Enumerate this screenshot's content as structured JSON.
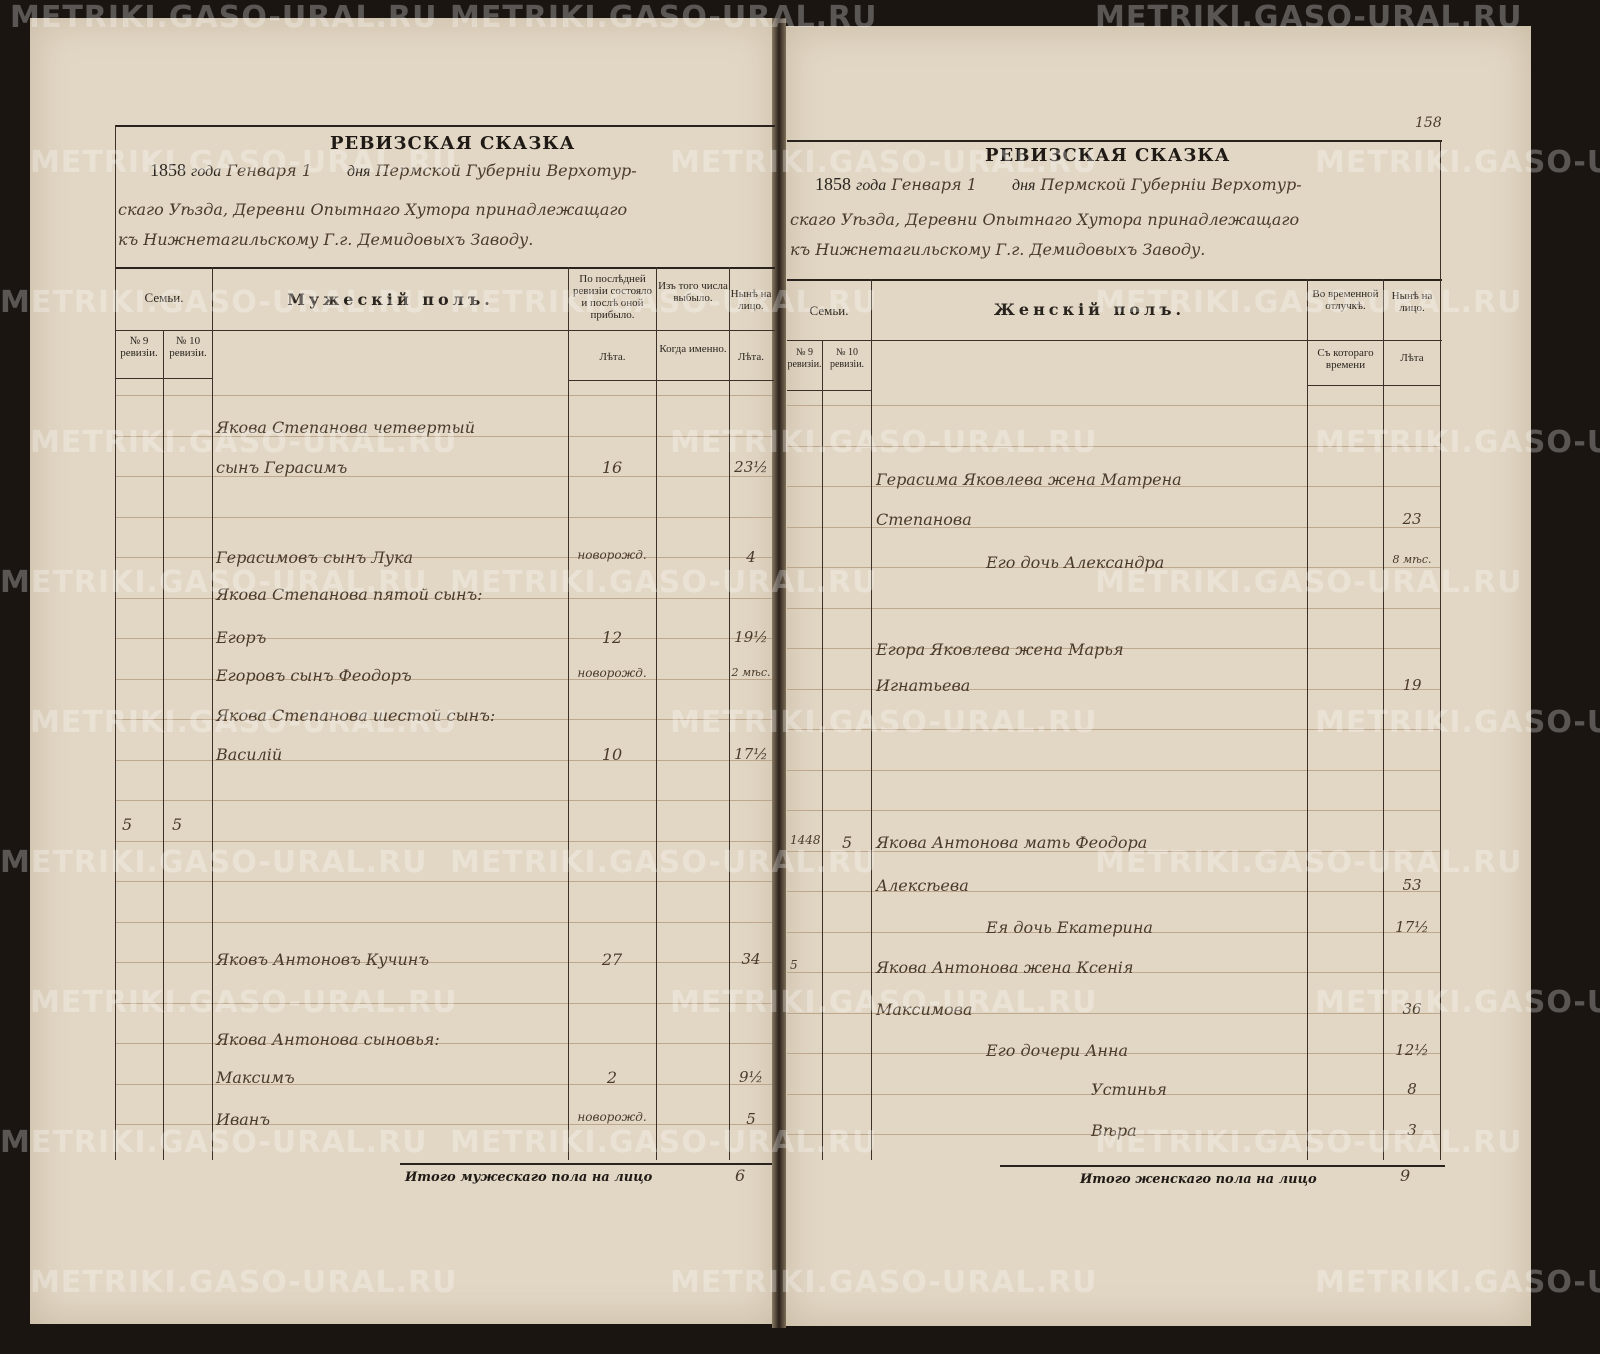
{
  "watermark": "METRIKI.GASO-URAL.RU",
  "colors": {
    "paper": "#e2d7c5",
    "ink": "#4a3a2b",
    "background": "#1b1512"
  },
  "left_page": {
    "title": "РЕВИЗСКАЯ СКАЗКА",
    "heading_line1_print_year": "1858",
    "heading_line1_print_goda": "года",
    "heading_line1_month": "Генваря 1",
    "heading_line1_print_dnya": "дня",
    "heading_line1_hand": "Пермской Губерніи Верхотур-",
    "heading_line2": "скаго Уѣзда, Деревни Опытнаго Хутора принадлежащаго",
    "heading_line3": "къ Нижнетагильскому Г.г. Демидовыхъ Заводу.",
    "headers": {
      "families": "Семьи.",
      "section": "Мужескій полъ.",
      "last_revision": "По послѣдней ревизіи состояло и послѣ оной прибыло.",
      "departed": "Изъ того числа выбыло.",
      "present": "Нынѣ на лицо.",
      "no9": "№ 9 ревизіи.",
      "no10": "№ 10 ревизіи.",
      "years1": "Лѣта.",
      "when": "Когда именно.",
      "years2": "Лѣта."
    },
    "entries": [
      {
        "fam9": "",
        "fam10": "",
        "name": "Якова Степанова четвертый",
        "age_last": "",
        "when": "",
        "age_now": ""
      },
      {
        "fam9": "",
        "fam10": "",
        "name": "сынъ Герасимъ",
        "age_last": "16",
        "when": "",
        "age_now": "23½"
      },
      {
        "fam9": "",
        "fam10": "",
        "name": "Герасимовъ сынъ Лука",
        "age_last": "новорожд.",
        "when": "",
        "age_now": "4"
      },
      {
        "fam9": "",
        "fam10": "",
        "name": "Якова Степанова пятой сынъ:",
        "age_last": "",
        "when": "",
        "age_now": ""
      },
      {
        "fam9": "",
        "fam10": "",
        "name": "Егоръ",
        "age_last": "12",
        "when": "",
        "age_now": "19½"
      },
      {
        "fam9": "",
        "fam10": "",
        "name": "Егоровъ сынъ Феодоръ",
        "age_last": "новорожд.",
        "when": "",
        "age_now": "2 мѣс."
      },
      {
        "fam9": "",
        "fam10": "",
        "name": "Якова Степанова шестой сынъ:",
        "age_last": "",
        "when": "",
        "age_now": ""
      },
      {
        "fam9": "",
        "fam10": "",
        "name": "Василій",
        "age_last": "10",
        "when": "",
        "age_now": "17½"
      },
      {
        "fam9": "5",
        "fam10": "5",
        "name": "",
        "age_last": "",
        "when": "",
        "age_now": ""
      },
      {
        "fam9": "",
        "fam10": "",
        "name": "Яковъ Антоновъ Кучинъ",
        "age_last": "27",
        "when": "",
        "age_now": "34"
      },
      {
        "fam9": "",
        "fam10": "",
        "name": "Якова Антонова сыновья:",
        "age_last": "",
        "when": "",
        "age_now": ""
      },
      {
        "fam9": "",
        "fam10": "",
        "name": "Максимъ",
        "age_last": "2",
        "when": "",
        "age_now": "9½"
      },
      {
        "fam9": "",
        "fam10": "",
        "name": "Иванъ",
        "age_last": "новорожд.",
        "when": "",
        "age_now": "5"
      }
    ],
    "total_label": "Итого мужескаго пола на лицо",
    "total_value": "6"
  },
  "right_page": {
    "page_number": "158",
    "title": "РЕВИЗСКАЯ СКАЗКА",
    "heading_line1_print_year": "1858",
    "heading_line1_print_goda": "года",
    "heading_line1_month": "Генваря 1",
    "heading_line1_print_dnya": "дня",
    "heading_line1_hand": "Пермской Губерніи Верхотур-",
    "heading_line2": "скаго Уѣзда, Деревни Опытнаго Хутора принадлежащаго",
    "heading_line3": "къ Нижнетагильскому Г.г. Демидовыхъ Заводу.",
    "headers": {
      "families": "Семьи.",
      "section": "Женскій полъ.",
      "absent": "Во временной отлучкѣ.",
      "present": "Нынѣ на лицо.",
      "no9": "№ 9 ревизіи.",
      "no10": "№ 10 ревизіи.",
      "since": "Съ котораго времени",
      "years": "Лѣта"
    },
    "entries": [
      {
        "fam9": "",
        "fam10": "",
        "name": "Герасима Яковлева жена Матрена",
        "indent": 0,
        "since": "",
        "age": ""
      },
      {
        "fam9": "",
        "fam10": "",
        "name": "Степанова",
        "indent": 0,
        "since": "",
        "age": "23"
      },
      {
        "fam9": "",
        "fam10": "",
        "name": "Его дочь Александра",
        "indent": 1,
        "since": "",
        "age": "8 мѣс."
      },
      {
        "fam9": "",
        "fam10": "",
        "name": "Егора Яковлева жена Марья",
        "indent": 0,
        "since": "",
        "age": ""
      },
      {
        "fam9": "",
        "fam10": "",
        "name": "Игнатьева",
        "indent": 0,
        "since": "",
        "age": "19"
      },
      {
        "fam9": "1448",
        "fam10": "5",
        "name": "Якова Антонова мать Феодора",
        "indent": 0,
        "since": "",
        "age": ""
      },
      {
        "fam9": "",
        "fam10": "",
        "name": "Алексѣева",
        "indent": 0,
        "since": "",
        "age": "53"
      },
      {
        "fam9": "",
        "fam10": "",
        "name": "Ея дочь Екатерина",
        "indent": 1,
        "since": "",
        "age": "17½"
      },
      {
        "fam9": "5",
        "fam10": "",
        "name": "Якова Антонова жена Ксенія",
        "indent": 0,
        "since": "",
        "age": ""
      },
      {
        "fam9": "",
        "fam10": "",
        "name": "Максимова",
        "indent": 0,
        "since": "",
        "age": "36"
      },
      {
        "fam9": "",
        "fam10": "",
        "name": "Его дочери Анна",
        "indent": 1,
        "since": "",
        "age": "12½"
      },
      {
        "fam9": "",
        "fam10": "",
        "name": "Устинья",
        "indent": 2,
        "since": "",
        "age": "8"
      },
      {
        "fam9": "",
        "fam10": "",
        "name": "Вѣра",
        "indent": 2,
        "since": "",
        "age": "3"
      }
    ],
    "total_label": "Итого женскаго пола на лицо",
    "total_value": "9"
  }
}
